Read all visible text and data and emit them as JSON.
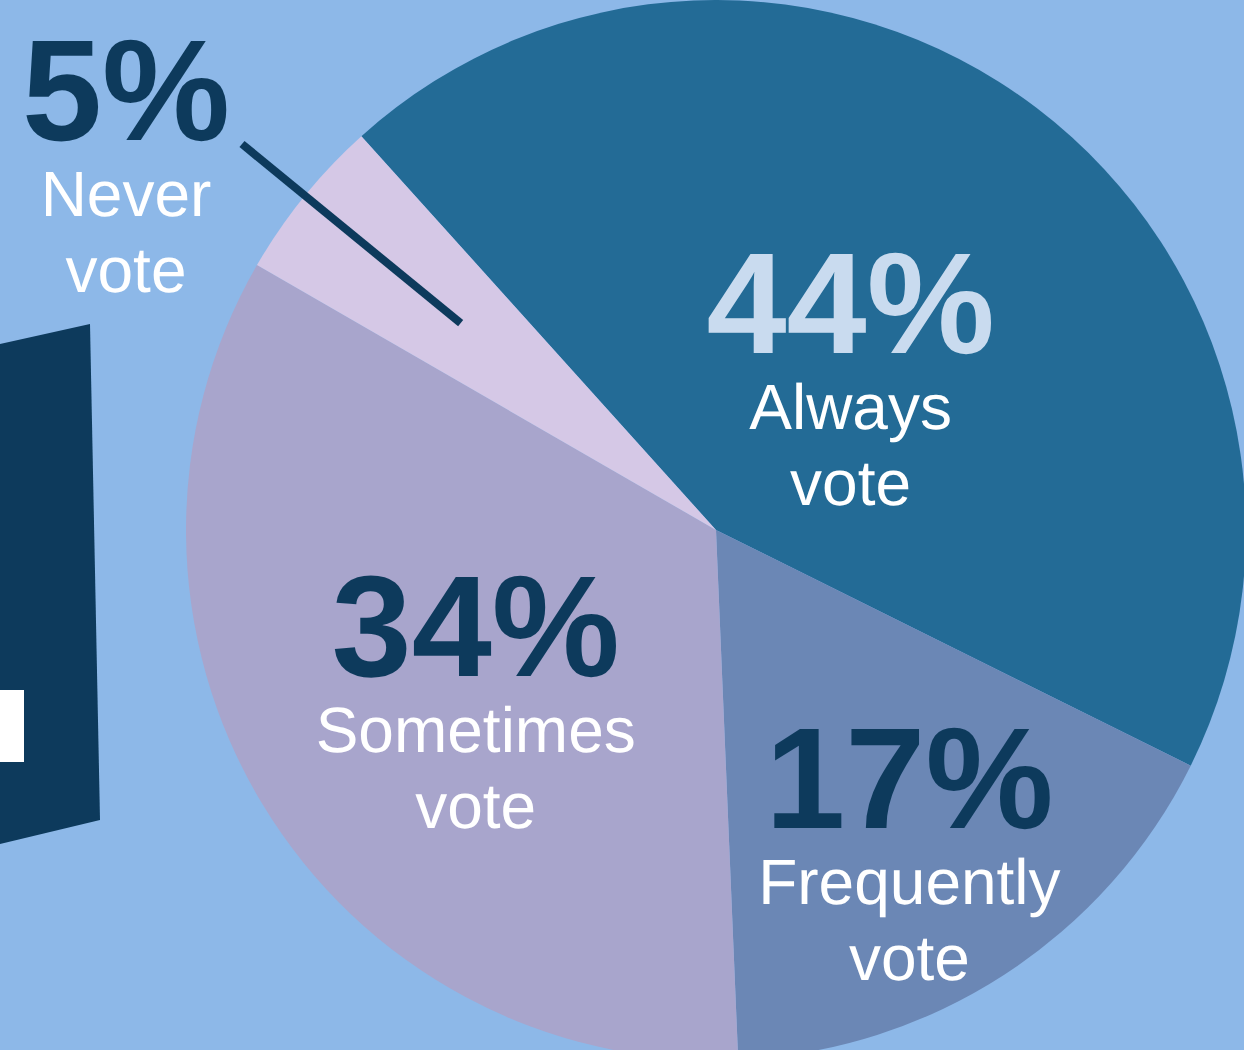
{
  "chart_data": {
    "type": "pie",
    "categories": [
      "Always vote",
      "Frequently vote",
      "Sometimes vote",
      "Never vote"
    ],
    "values": [
      44,
      17,
      34,
      5
    ],
    "colors": [
      "#236b96",
      "#6b87b5",
      "#a8a5cc",
      "#d5c8e6"
    ],
    "value_labels": [
      "44%",
      "17%",
      "34%",
      "5%"
    ]
  }
}
